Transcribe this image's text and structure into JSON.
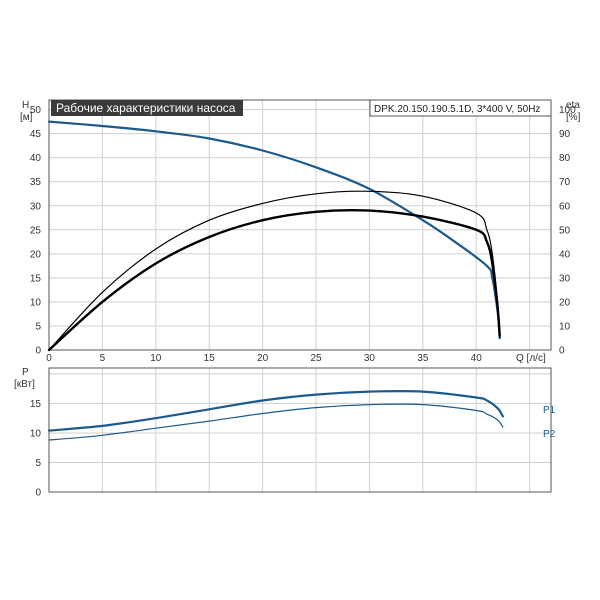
{
  "chart_data": [
    {
      "type": "line",
      "title": "Рабочие характеристики насоса",
      "subtitle": "DPK.20.150.190.5.1D, 3*400 V, 50Hz",
      "ylabel_left": "H",
      "ylabel_left_unit": "[м]",
      "ylabel_right": "eta",
      "ylabel_right_unit": "[%]",
      "xlabel": "Q [л/с]",
      "xlim": [
        0,
        47
      ],
      "ylim": [
        0,
        52
      ],
      "ylim_right": [
        0,
        104
      ],
      "xticks": [
        "0",
        "5",
        "10",
        "15",
        "20",
        "25",
        "30",
        "35",
        "40"
      ],
      "yticks_left": [
        "0",
        "5",
        "10",
        "15",
        "20",
        "25",
        "30",
        "35",
        "40",
        "45",
        "50"
      ],
      "yticks_right": [
        "0",
        "10",
        "20",
        "30",
        "40",
        "50",
        "60",
        "70",
        "80",
        "90",
        "100"
      ],
      "grid": true,
      "series": [
        {
          "axis": "left",
          "color": "#1d5a8c",
          "width": 2.2,
          "x": [
            0,
            5,
            10,
            15,
            20,
            25,
            30,
            35,
            38,
            41,
            41.5,
            42,
            42.2
          ],
          "y": [
            47.5,
            46.6,
            45.5,
            44,
            41.5,
            38,
            33.5,
            27,
            22.5,
            17.5,
            15,
            8,
            2.5
          ]
        },
        {
          "axis": "right",
          "color": "#000000",
          "width": 1.2,
          "x": [
            0,
            5,
            10,
            15,
            20,
            25,
            30,
            35,
            40,
            41,
            41.5,
            42,
            42.2
          ],
          "y": [
            0,
            24,
            42,
            54,
            61,
            65,
            66,
            64,
            57,
            50,
            40,
            20,
            5
          ]
        },
        {
          "axis": "right",
          "color": "#000000",
          "width": 2.4,
          "x": [
            0,
            5,
            10,
            15,
            20,
            25,
            30,
            35,
            40,
            41,
            41.5,
            42,
            42.2
          ],
          "y": [
            0,
            20,
            36,
            47,
            54,
            57.5,
            58,
            55.5,
            50,
            45,
            36,
            18,
            6
          ]
        }
      ]
    },
    {
      "type": "line",
      "ylabel": "P",
      "ylabel_unit": "[кВт]",
      "xlim": [
        0,
        47
      ],
      "ylim": [
        0,
        21
      ],
      "yticks": [
        "0",
        "5",
        "10",
        "15"
      ],
      "grid": true,
      "series": [
        {
          "name": "P1",
          "color": "#1d5a8c",
          "width": 2.2,
          "x": [
            0,
            5,
            10,
            15,
            20,
            25,
            30,
            35,
            40,
            41,
            42,
            42.5
          ],
          "y": [
            10.4,
            11.2,
            12.5,
            14,
            15.5,
            16.5,
            17,
            17,
            16,
            15.5,
            14.2,
            12.8
          ]
        },
        {
          "name": "P2",
          "color": "#1d5a8c",
          "width": 1.2,
          "x": [
            0,
            5,
            10,
            15,
            20,
            25,
            30,
            35,
            40,
            41,
            42,
            42.5
          ],
          "y": [
            8.8,
            9.6,
            10.8,
            12,
            13.3,
            14.3,
            14.8,
            14.8,
            13.8,
            13.2,
            12.2,
            11
          ]
        }
      ]
    }
  ]
}
